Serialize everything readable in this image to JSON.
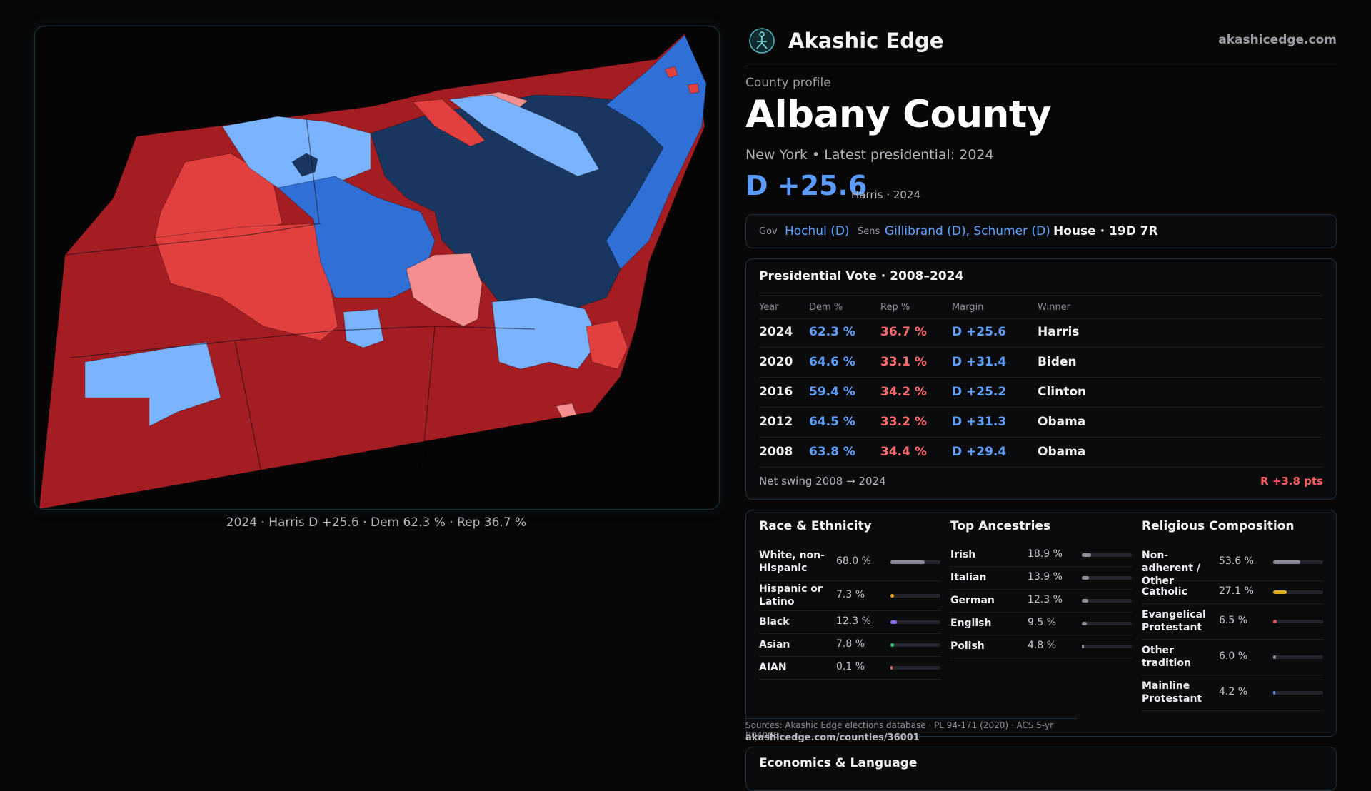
{
  "brand": {
    "name": "Akashic Edge",
    "url": "akashicedge.com"
  },
  "profile": {
    "eyebrow": "County profile",
    "title": "Albany County",
    "subline": "New York • Latest presidential: 2024",
    "margin": "D +25.6",
    "margin_sub": "Harris · 2024"
  },
  "officials": {
    "gov_label": "Gov",
    "gov": "Hochul (D)",
    "sens_label": "Sens",
    "sens": "Gillibrand (D), Schumer (D)",
    "house": "House · 19D 7R"
  },
  "presidential": {
    "title": "Presidential Vote · 2008–2024",
    "headers": [
      "Year",
      "Dem %",
      "Rep %",
      "Margin",
      "Winner"
    ],
    "rows": [
      {
        "year": "2024",
        "dem": "62.3 %",
        "rep": "36.7 %",
        "margin": "D +25.6",
        "winner": "Harris"
      },
      {
        "year": "2020",
        "dem": "64.6 %",
        "rep": "33.1 %",
        "margin": "D +31.4",
        "winner": "Biden"
      },
      {
        "year": "2016",
        "dem": "59.4 %",
        "rep": "34.2 %",
        "margin": "D +25.2",
        "winner": "Clinton"
      },
      {
        "year": "2012",
        "dem": "64.5 %",
        "rep": "33.2 %",
        "margin": "D +31.3",
        "winner": "Obama"
      },
      {
        "year": "2008",
        "dem": "63.8 %",
        "rep": "34.4 %",
        "margin": "D +29.4",
        "winner": "Obama"
      }
    ],
    "swing_label": "Net swing 2008 → 2024",
    "swing_value": "R +3.8 pts"
  },
  "race": {
    "title": "Race & Ethnicity",
    "rows": [
      {
        "label": "White, non-Hispanic",
        "value": "68.0 %",
        "frac": 0.68,
        "color": "#8e8e9a"
      },
      {
        "label": "Hispanic or Latino",
        "value": "7.3 %",
        "frac": 0.073,
        "color": "#e8a317"
      },
      {
        "label": "Black",
        "value": "12.3 %",
        "frac": 0.123,
        "color": "#8a6cf0"
      },
      {
        "label": "Asian",
        "value": "7.8 %",
        "frac": 0.078,
        "color": "#2ec27e"
      },
      {
        "label": "AIAN",
        "value": "0.1 %",
        "frac": 0.001,
        "color": "#d06060"
      }
    ]
  },
  "ancestry": {
    "title": "Top Ancestries",
    "rows": [
      {
        "label": "Irish",
        "value": "18.9 %",
        "frac": 0.189,
        "color": "#8e8e9a"
      },
      {
        "label": "Italian",
        "value": "13.9 %",
        "frac": 0.139,
        "color": "#8e8e9a"
      },
      {
        "label": "German",
        "value": "12.3 %",
        "frac": 0.123,
        "color": "#8e8e9a"
      },
      {
        "label": "English",
        "value": "9.5 %",
        "frac": 0.095,
        "color": "#8e8e9a"
      },
      {
        "label": "Polish",
        "value": "4.8 %",
        "frac": 0.048,
        "color": "#8e8e9a"
      }
    ]
  },
  "religion": {
    "title": "Religious Composition",
    "rows": [
      {
        "label": "Non-adherent / Other",
        "value": "53.6 %",
        "frac": 0.536,
        "color": "#8e8e9a"
      },
      {
        "label": "Catholic",
        "value": "27.1 %",
        "frac": 0.271,
        "color": "#e0b020"
      },
      {
        "label": "Evangelical Protestant",
        "value": "6.5 %",
        "frac": 0.065,
        "color": "#e05a5a"
      },
      {
        "label": "Other tradition",
        "value": "6.0 %",
        "frac": 0.06,
        "color": "#8e8e9a"
      },
      {
        "label": "Mainline Protestant",
        "value": "4.2 %",
        "frac": 0.042,
        "color": "#5a7fe0"
      }
    ]
  },
  "sources": {
    "text": "Sources: Akashic Edge elections database · PL 94-171 (2020) · ACS 5-yr B04006",
    "url": "akashicedge.com/counties/36001"
  },
  "economics": {
    "title": "Economics & Language"
  },
  "map": {
    "caption": "2024 · Harris D +25.6 · Dem 62.3 % · Rep 36.7 %",
    "colors": {
      "strong_rep": "#a31d22",
      "rep": "#e2403f",
      "lean_rep": "#f58f8f",
      "lean_dem": "#7ab4ff",
      "dem": "#2f6fd6",
      "strong_dem": "#18365f"
    }
  }
}
